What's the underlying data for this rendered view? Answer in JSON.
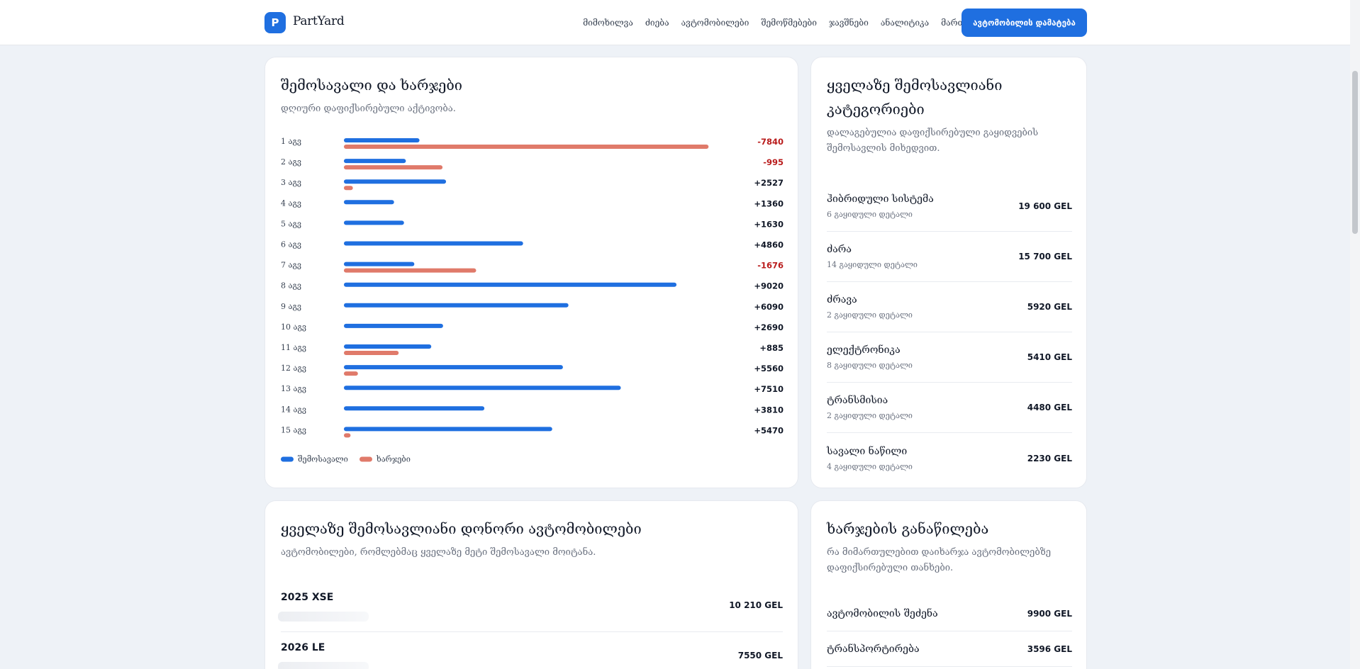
{
  "brand": {
    "logo_letter": "P",
    "name": "PartYard"
  },
  "nav": {
    "items": [
      "მიმოხილვა",
      "ძიება",
      "ავტომობილები",
      "შემოწმებები",
      "ჯავშნები",
      "ანალიტიკა",
      "მართვა"
    ],
    "cta": "ავტომობილის დამატება"
  },
  "colors": {
    "accent": "#1f6fe0",
    "income": "#1f6fe0",
    "expense": "#e07a6a",
    "negative": "#b91c1c"
  },
  "chart_card": {
    "title": "შემოსავალი და ხარჯები",
    "subtitle": "დღიური დაფიქსირებული აქტივობა.",
    "legend": {
      "income": "შემოსავალი",
      "expense": "ხარჯები"
    }
  },
  "chart_data": {
    "type": "bar",
    "categories": [
      "1 აგვ",
      "2 აგვ",
      "3 აგვ",
      "4 აგვ",
      "5 აგვ",
      "6 აგვ",
      "7 აგვ",
      "8 აგვ",
      "9 აგვ",
      "10 აგვ",
      "11 აგვ",
      "12 აგვ",
      "13 აგვ",
      "14 აგვ",
      "15 აგვ"
    ],
    "series": [
      {
        "name": "შემოსავალი",
        "values": [
          2050,
          1680,
          2770,
          1360,
          1630,
          4860,
          1910,
          9020,
          6090,
          2690,
          2370,
          5940,
          7510,
          3810,
          5650
        ]
      },
      {
        "name": "ხარჯები",
        "values": [
          9890,
          2675,
          243,
          0,
          0,
          0,
          3586,
          0,
          0,
          0,
          1485,
          380,
          0,
          0,
          180
        ]
      }
    ],
    "net_labels": [
      "-7840",
      "-995",
      "+2527",
      "+1360",
      "+1630",
      "+4860",
      "-1676",
      "+9020",
      "+6090",
      "+2690",
      "+885",
      "+5560",
      "+7510",
      "+3810",
      "+5470"
    ],
    "xmax": 10000
  },
  "categories_card": {
    "title": "ყველაზე შემოსავლიანი კატეგორიები",
    "subtitle": "დალაგებულია დაფიქსირებული გაყიდვების შემოსავლის მიხედვით.",
    "items": [
      {
        "name": "ჰიბრიდული სისტემა",
        "meta": "6 გაყიდული დეტალი",
        "value": "19 600 GEL"
      },
      {
        "name": "ძარა",
        "meta": "14 გაყიდული დეტალი",
        "value": "15 700 GEL"
      },
      {
        "name": "ძრავა",
        "meta": "2 გაყიდული დეტალი",
        "value": "5920 GEL"
      },
      {
        "name": "ელექტრონიკა",
        "meta": "8 გაყიდული დეტალი",
        "value": "5410 GEL"
      },
      {
        "name": "ტრანსმისია",
        "meta": "2 გაყიდული დეტალი",
        "value": "4480 GEL"
      },
      {
        "name": "სავალი ნაწილი",
        "meta": "4 გაყიდული დეტალი",
        "value": "2230 GEL"
      }
    ]
  },
  "donors_card": {
    "title": "ყველაზე შემოსავლიანი დონორი ავტომობილები",
    "subtitle": "ავტომობილები, რომლებმაც ყველაზე მეტი შემოსავალი მოიტანა.",
    "items": [
      {
        "name": "2025 XSE",
        "value": "10 210 GEL"
      },
      {
        "name": "2026 LE",
        "value": "7550 GEL"
      }
    ]
  },
  "expenses_card": {
    "title": "ხარჯების განაწილება",
    "subtitle": "რა მიმართულებით დაიხარჯა ავტომობილებზე დაფიქსირებული თანხები.",
    "items": [
      {
        "label": "ავტომობილის შეძენა",
        "value": "9900 GEL"
      },
      {
        "label": "ტრანსპორტირება",
        "value": "3596 GEL"
      }
    ]
  }
}
